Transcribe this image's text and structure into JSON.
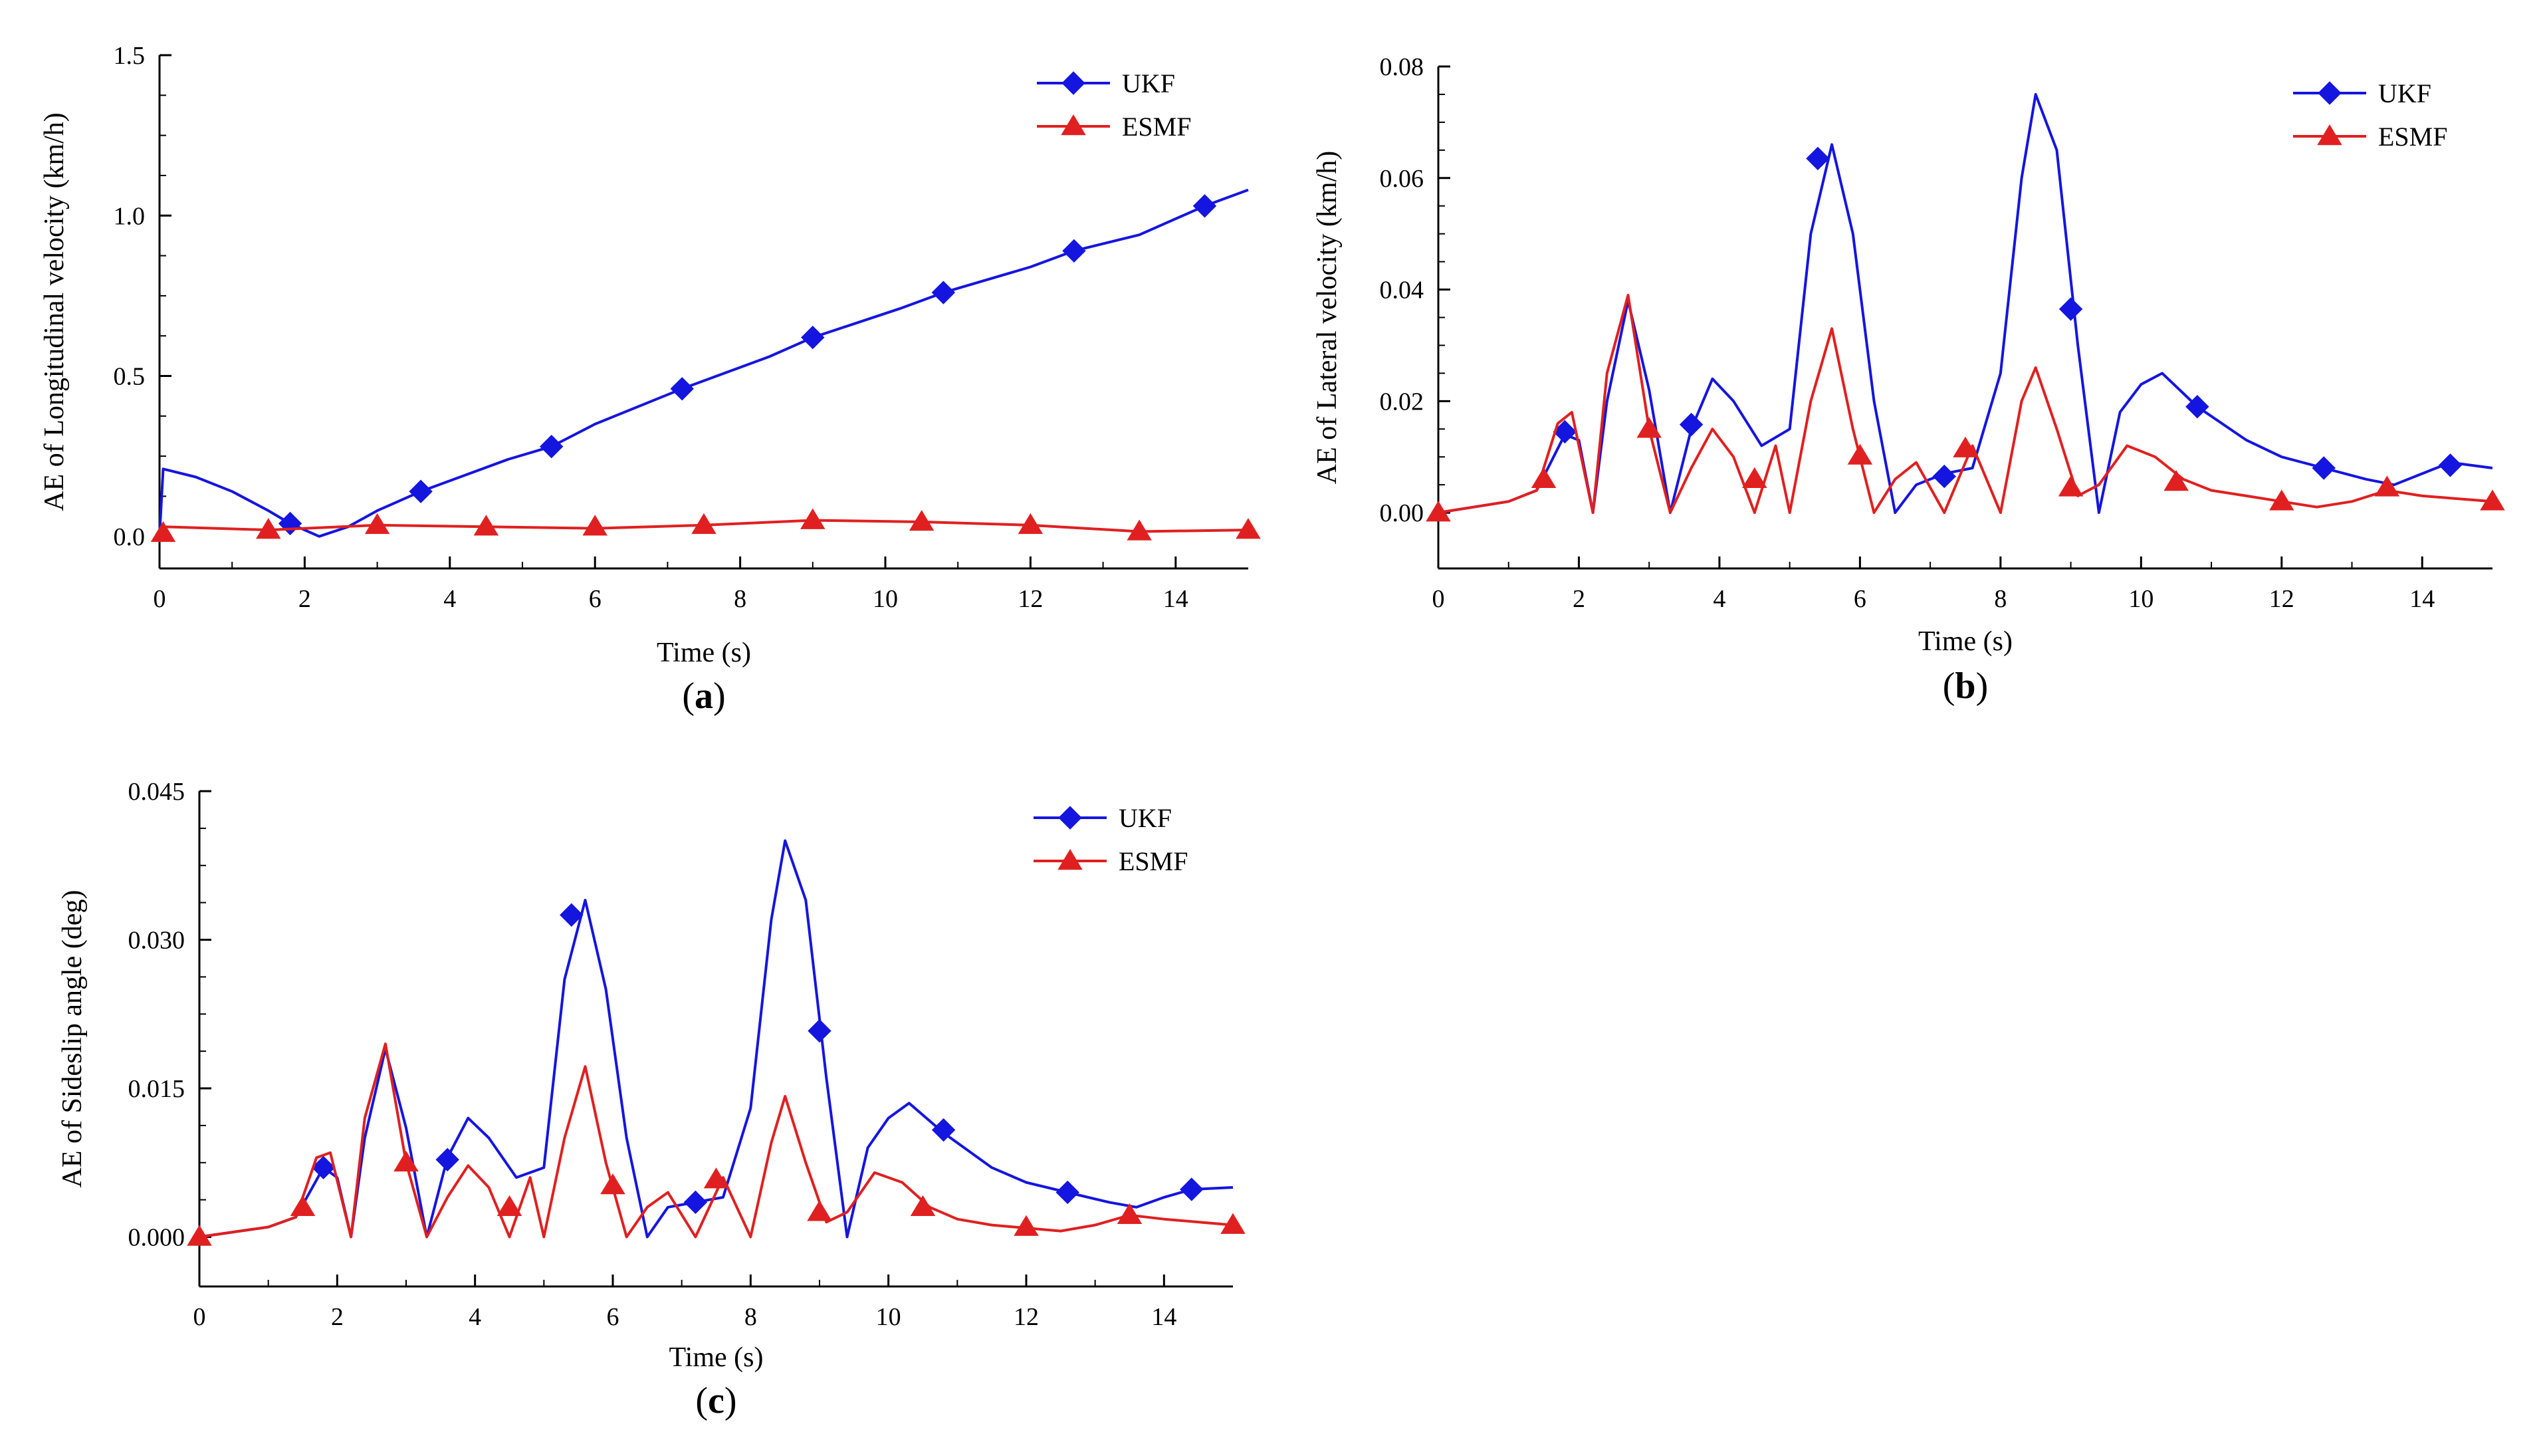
{
  "colors": {
    "ukf": "#1515E0",
    "esmf": "#E02020",
    "axis": "#000000"
  },
  "chart_data": [
    {
      "type": "line",
      "panel_label": "a",
      "xlabel": "Time (s)",
      "ylabel": "AE of Longitudinal velocity (km/h)",
      "xlim": [
        0,
        15
      ],
      "ylim": [
        -0.1,
        1.5
      ],
      "x_ticks": [
        0,
        2,
        4,
        6,
        8,
        10,
        12,
        14
      ],
      "x_tick_labels": [
        "0",
        "2",
        "4",
        "6",
        "8",
        "10",
        "12",
        "14"
      ],
      "y_ticks": [
        0,
        0.5,
        1.0,
        1.5
      ],
      "y_tick_labels": [
        "0.0",
        "0.5",
        "1.0",
        "1.5"
      ],
      "legend": [
        "UKF",
        "ESMF"
      ],
      "series": [
        {
          "name": "UKF",
          "x": [
            0,
            0.05,
            0.5,
            1.0,
            1.5,
            1.8,
            2.2,
            2.6,
            3.0,
            3.6,
            4.2,
            4.8,
            5.4,
            6.0,
            7.2,
            8.4,
            9.0,
            10.2,
            10.8,
            12.0,
            12.6,
            13.5,
            14.4,
            15.0
          ],
          "values": [
            0.0,
            0.21,
            0.185,
            0.14,
            0.08,
            0.04,
            0.0,
            0.03,
            0.08,
            0.14,
            0.19,
            0.24,
            0.28,
            0.35,
            0.46,
            0.56,
            0.62,
            0.71,
            0.76,
            0.84,
            0.89,
            0.94,
            1.03,
            1.08
          ],
          "markers_x": [
            1.8,
            3.6,
            5.4,
            7.2,
            9.0,
            10.8,
            12.6,
            14.4
          ],
          "markers_y": [
            0.04,
            0.14,
            0.28,
            0.46,
            0.62,
            0.76,
            0.89,
            1.03
          ]
        },
        {
          "name": "ESMF",
          "x": [
            0,
            0.05,
            1.5,
            3.0,
            4.5,
            6.0,
            7.5,
            9.0,
            10.5,
            12.0,
            13.5,
            15.0
          ],
          "values": [
            0.0,
            0.03,
            0.02,
            0.035,
            0.03,
            0.025,
            0.035,
            0.05,
            0.045,
            0.035,
            0.015,
            0.02
          ],
          "markers_x": [
            0.05,
            1.5,
            3.0,
            4.5,
            6.0,
            7.5,
            9.0,
            10.5,
            12.0,
            13.5,
            15.0
          ],
          "markers_y": [
            0.01,
            0.02,
            0.035,
            0.03,
            0.03,
            0.035,
            0.05,
            0.045,
            0.035,
            0.015,
            0.02
          ]
        }
      ]
    },
    {
      "type": "line",
      "panel_label": "b",
      "xlabel": "Time (s)",
      "ylabel": "AE of Lateral velocity (km/h)",
      "xlim": [
        0,
        15
      ],
      "ylim": [
        -0.01,
        0.08
      ],
      "x_ticks": [
        0,
        2,
        4,
        6,
        8,
        10,
        12,
        14
      ],
      "x_tick_labels": [
        "0",
        "2",
        "4",
        "6",
        "8",
        "10",
        "12",
        "14"
      ],
      "y_ticks": [
        0,
        0.02,
        0.04,
        0.06,
        0.08
      ],
      "y_tick_labels": [
        "0.00",
        "0.02",
        "0.04",
        "0.06",
        "0.08"
      ],
      "legend": [
        "UKF",
        "ESMF"
      ],
      "series": [
        {
          "name": "UKF",
          "x": [
            0,
            0.5,
            1.0,
            1.4,
            1.8,
            2.0,
            2.2,
            2.4,
            2.7,
            3.0,
            3.3,
            3.6,
            3.9,
            4.2,
            4.6,
            5.0,
            5.3,
            5.6,
            5.9,
            6.2,
            6.5,
            6.8,
            7.2,
            7.6,
            8.0,
            8.3,
            8.5,
            8.8,
            9.1,
            9.4,
            9.7,
            10.0,
            10.3,
            10.8,
            11.5,
            12.0,
            12.6,
            13.2,
            13.6,
            14.0,
            14.4,
            15.0
          ],
          "values": [
            0.0,
            0.001,
            0.002,
            0.004,
            0.014,
            0.013,
            0.0,
            0.02,
            0.038,
            0.022,
            0.0,
            0.015,
            0.024,
            0.02,
            0.012,
            0.015,
            0.05,
            0.066,
            0.05,
            0.02,
            0.0,
            0.005,
            0.007,
            0.008,
            0.025,
            0.06,
            0.075,
            0.065,
            0.03,
            0.0,
            0.018,
            0.023,
            0.025,
            0.019,
            0.013,
            0.01,
            0.008,
            0.006,
            0.005,
            0.007,
            0.009,
            0.008
          ],
          "markers_x": [
            1.8,
            3.6,
            5.4,
            7.2,
            9.0,
            10.8,
            12.6,
            14.4
          ],
          "markers_y": [
            0.0145,
            0.0158,
            0.0635,
            0.0065,
            0.0365,
            0.019,
            0.008,
            0.0085
          ]
        },
        {
          "name": "ESMF",
          "x": [
            0,
            0.5,
            1.0,
            1.4,
            1.7,
            1.9,
            2.2,
            2.4,
            2.7,
            3.0,
            3.3,
            3.6,
            3.9,
            4.2,
            4.5,
            4.8,
            5.0,
            5.3,
            5.6,
            5.9,
            6.2,
            6.5,
            6.8,
            7.2,
            7.6,
            8.0,
            8.3,
            8.5,
            8.8,
            9.1,
            9.4,
            9.8,
            10.2,
            10.6,
            11.0,
            11.5,
            12.0,
            12.5,
            13.0,
            13.5,
            14.0,
            15.0
          ],
          "values": [
            0.0,
            0.001,
            0.002,
            0.004,
            0.016,
            0.018,
            0.0,
            0.025,
            0.039,
            0.015,
            0.0,
            0.008,
            0.015,
            0.01,
            0.0,
            0.012,
            0.0,
            0.02,
            0.033,
            0.015,
            0.0,
            0.006,
            0.009,
            0.0,
            0.012,
            0.0,
            0.02,
            0.026,
            0.015,
            0.003,
            0.005,
            0.012,
            0.01,
            0.006,
            0.004,
            0.003,
            0.002,
            0.001,
            0.002,
            0.004,
            0.003,
            0.002
          ],
          "markers_x": [
            0,
            1.5,
            3.0,
            4.5,
            6.0,
            7.5,
            9.0,
            10.5,
            12.0,
            13.5,
            15.0
          ],
          "markers_y": [
            0.0,
            0.006,
            0.015,
            0.006,
            0.0102,
            0.0115,
            0.0045,
            0.0055,
            0.002,
            0.0045,
            0.002
          ]
        }
      ]
    },
    {
      "type": "line",
      "panel_label": "c",
      "xlabel": "Time (s)",
      "ylabel": "AE of Sideslip angle (deg)",
      "xlim": [
        0,
        15
      ],
      "ylim": [
        -0.005,
        0.045
      ],
      "x_ticks": [
        0,
        2,
        4,
        6,
        8,
        10,
        12,
        14
      ],
      "x_tick_labels": [
        "0",
        "2",
        "4",
        "6",
        "8",
        "10",
        "12",
        "14"
      ],
      "y_ticks": [
        0,
        0.015,
        0.03,
        0.045
      ],
      "y_tick_labels": [
        "0.000",
        "0.015",
        "0.030",
        "0.045"
      ],
      "legend": [
        "UKF",
        "ESMF"
      ],
      "series": [
        {
          "name": "UKF",
          "x": [
            0,
            0.5,
            1.0,
            1.4,
            1.8,
            2.0,
            2.2,
            2.4,
            2.7,
            3.0,
            3.3,
            3.6,
            3.9,
            4.2,
            4.6,
            5.0,
            5.3,
            5.6,
            5.9,
            6.2,
            6.5,
            6.8,
            7.2,
            7.6,
            8.0,
            8.3,
            8.5,
            8.8,
            9.1,
            9.4,
            9.7,
            10.0,
            10.3,
            10.8,
            11.5,
            12.0,
            12.6,
            13.2,
            13.6,
            14.0,
            14.4,
            15.0
          ],
          "values": [
            0.0,
            0.0005,
            0.001,
            0.002,
            0.007,
            0.006,
            0.0,
            0.01,
            0.019,
            0.011,
            0.0,
            0.008,
            0.012,
            0.01,
            0.006,
            0.007,
            0.026,
            0.034,
            0.025,
            0.01,
            0.0,
            0.003,
            0.0035,
            0.004,
            0.013,
            0.032,
            0.04,
            0.034,
            0.016,
            0.0,
            0.009,
            0.012,
            0.0135,
            0.0105,
            0.007,
            0.0055,
            0.0045,
            0.0035,
            0.003,
            0.004,
            0.0048,
            0.005
          ],
          "markers_x": [
            1.8,
            3.6,
            5.4,
            7.2,
            9.0,
            10.8,
            12.6,
            14.4
          ],
          "markers_y": [
            0.007,
            0.0078,
            0.0325,
            0.0035,
            0.0208,
            0.0108,
            0.0045,
            0.0048
          ]
        },
        {
          "name": "ESMF",
          "x": [
            0,
            0.5,
            1.0,
            1.4,
            1.7,
            1.9,
            2.2,
            2.4,
            2.7,
            3.0,
            3.3,
            3.6,
            3.9,
            4.2,
            4.5,
            4.8,
            5.0,
            5.3,
            5.6,
            5.9,
            6.2,
            6.5,
            6.8,
            7.2,
            7.6,
            8.0,
            8.3,
            8.5,
            8.8,
            9.1,
            9.4,
            9.8,
            10.2,
            10.6,
            11.0,
            11.5,
            12.0,
            12.5,
            13.0,
            13.5,
            14.0,
            15.0
          ],
          "values": [
            0.0,
            0.0005,
            0.001,
            0.002,
            0.008,
            0.0085,
            0.0,
            0.012,
            0.0195,
            0.0075,
            0.0,
            0.004,
            0.0072,
            0.005,
            0.0,
            0.006,
            0.0,
            0.01,
            0.0172,
            0.0075,
            0.0,
            0.003,
            0.0045,
            0.0,
            0.006,
            0.0,
            0.0095,
            0.0142,
            0.0075,
            0.0015,
            0.0025,
            0.0065,
            0.0055,
            0.003,
            0.0018,
            0.0012,
            0.0009,
            0.0006,
            0.0012,
            0.0022,
            0.0018,
            0.0012
          ],
          "markers_x": [
            0,
            1.5,
            3.0,
            4.5,
            6.0,
            7.5,
            9.0,
            10.5,
            12.0,
            13.5,
            15.0
          ],
          "markers_y": [
            0.0,
            0.003,
            0.0075,
            0.003,
            0.0052,
            0.0058,
            0.0025,
            0.003,
            0.001,
            0.0022,
            0.0012
          ]
        }
      ]
    }
  ]
}
